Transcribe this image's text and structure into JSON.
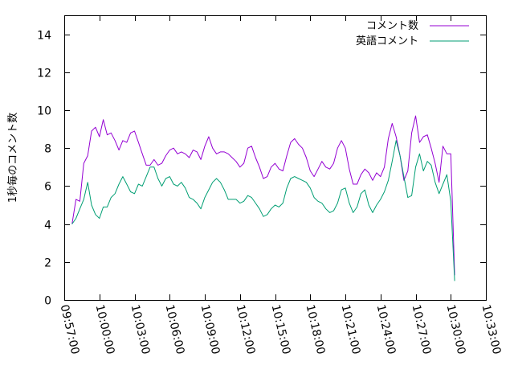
{
  "chart_data": {
    "type": "line",
    "title": "",
    "xlabel": "",
    "ylabel": "1秒毎のコメント数",
    "x_range": [
      "09:57:00",
      "10:33:00"
    ],
    "x_ticks": [
      "09:57:00",
      "10:00:00",
      "10:03:00",
      "10:06:00",
      "10:09:00",
      "10:12:00",
      "10:15:00",
      "10:18:00",
      "10:21:00",
      "10:24:00",
      "10:27:00",
      "10:30:00",
      "10:33:00"
    ],
    "ylim": [
      0,
      15
    ],
    "y_ticks": [
      0,
      2,
      4,
      6,
      8,
      10,
      12,
      14
    ],
    "y_tick_labels": [
      "0",
      "2",
      "4",
      "6",
      "8",
      "10",
      "12",
      "14"
    ],
    "grid": false,
    "legend_position": "top-right",
    "x": [
      "09:57:40",
      "09:58:00",
      "09:58:20",
      "09:58:40",
      "09:59:00",
      "09:59:20",
      "09:59:40",
      "10:00:00",
      "10:00:20",
      "10:00:40",
      "10:01:00",
      "10:01:20",
      "10:01:40",
      "10:02:00",
      "10:02:20",
      "10:02:40",
      "10:03:00",
      "10:03:20",
      "10:03:40",
      "10:04:00",
      "10:04:20",
      "10:04:40",
      "10:05:00",
      "10:05:20",
      "10:05:40",
      "10:06:00",
      "10:06:20",
      "10:06:40",
      "10:07:00",
      "10:07:20",
      "10:07:40",
      "10:08:00",
      "10:08:20",
      "10:08:40",
      "10:09:00",
      "10:09:20",
      "10:09:40",
      "10:10:00",
      "10:10:20",
      "10:10:40",
      "10:11:00",
      "10:11:20",
      "10:11:40",
      "10:12:00",
      "10:12:20",
      "10:12:40",
      "10:13:00",
      "10:13:20",
      "10:13:40",
      "10:14:00",
      "10:14:20",
      "10:14:40",
      "10:15:00",
      "10:15:20",
      "10:15:40",
      "10:16:00",
      "10:16:20",
      "10:16:40",
      "10:17:00",
      "10:17:20",
      "10:17:40",
      "10:18:00",
      "10:18:20",
      "10:18:40",
      "10:19:00",
      "10:19:20",
      "10:19:40",
      "10:20:00",
      "10:20:20",
      "10:20:40",
      "10:21:00",
      "10:21:20",
      "10:21:40",
      "10:22:00",
      "10:22:20",
      "10:22:40",
      "10:23:00",
      "10:23:20",
      "10:23:40",
      "10:24:00",
      "10:24:20",
      "10:24:40",
      "10:25:00",
      "10:25:20",
      "10:25:40",
      "10:26:00",
      "10:26:20",
      "10:26:40",
      "10:27:00",
      "10:27:20",
      "10:27:40",
      "10:28:00",
      "10:28:20",
      "10:28:40",
      "10:29:00",
      "10:29:20",
      "10:29:40",
      "10:30:00",
      "10:30:20"
    ],
    "series": [
      {
        "name": "コメント数",
        "color": "#9400d3",
        "values": [
          4.0,
          5.3,
          5.2,
          7.2,
          7.6,
          8.9,
          9.1,
          8.6,
          9.5,
          8.7,
          8.8,
          8.4,
          7.9,
          8.4,
          8.3,
          8.8,
          8.9,
          8.3,
          7.7,
          7.1,
          7.1,
          7.4,
          7.1,
          7.2,
          7.6,
          7.9,
          8.0,
          7.7,
          7.8,
          7.7,
          7.5,
          7.9,
          7.8,
          7.4,
          8.1,
          8.6,
          8.0,
          7.7,
          7.8,
          7.8,
          7.7,
          7.5,
          7.3,
          7.0,
          7.2,
          8.0,
          8.1,
          7.5,
          7.0,
          6.4,
          6.5,
          7.0,
          7.2,
          6.9,
          6.8,
          7.6,
          8.3,
          8.5,
          8.2,
          8.0,
          7.5,
          6.8,
          6.5,
          6.9,
          7.3,
          7.0,
          6.9,
          7.2,
          8.0,
          8.4,
          8.0,
          6.9,
          6.1,
          6.1,
          6.6,
          6.9,
          6.7,
          6.3,
          6.7,
          6.5,
          7.0,
          8.5,
          9.3,
          8.6,
          7.6,
          6.3,
          6.8,
          8.8,
          9.7,
          8.3,
          8.6,
          8.7,
          8.0,
          7.2,
          6.2,
          8.1,
          7.7,
          7.7,
          1.3
        ]
      },
      {
        "name": "英語コメント",
        "color": "#009e73",
        "values": [
          4.0,
          4.3,
          4.8,
          5.3,
          6.2,
          5.0,
          4.5,
          4.3,
          4.9,
          4.9,
          5.4,
          5.6,
          6.1,
          6.5,
          6.1,
          5.7,
          5.6,
          6.1,
          6.0,
          6.5,
          7.0,
          7.0,
          6.4,
          6.0,
          6.4,
          6.5,
          6.1,
          6.0,
          6.2,
          5.9,
          5.4,
          5.3,
          5.1,
          4.8,
          5.4,
          5.8,
          6.2,
          6.4,
          6.2,
          5.8,
          5.3,
          5.3,
          5.3,
          5.1,
          5.2,
          5.5,
          5.4,
          5.1,
          4.8,
          4.4,
          4.5,
          4.8,
          5.0,
          4.9,
          5.1,
          5.9,
          6.4,
          6.5,
          6.4,
          6.3,
          6.2,
          5.9,
          5.4,
          5.2,
          5.1,
          4.8,
          4.6,
          4.7,
          5.1,
          5.8,
          5.9,
          5.1,
          4.6,
          4.9,
          5.6,
          5.8,
          5.0,
          4.6,
          5.0,
          5.3,
          5.7,
          6.3,
          7.3,
          8.4,
          7.6,
          6.5,
          5.4,
          5.5,
          7.0,
          7.7,
          6.8,
          7.3,
          7.1,
          6.2,
          5.6,
          6.1,
          6.6,
          5.2,
          1.0
        ]
      }
    ]
  }
}
